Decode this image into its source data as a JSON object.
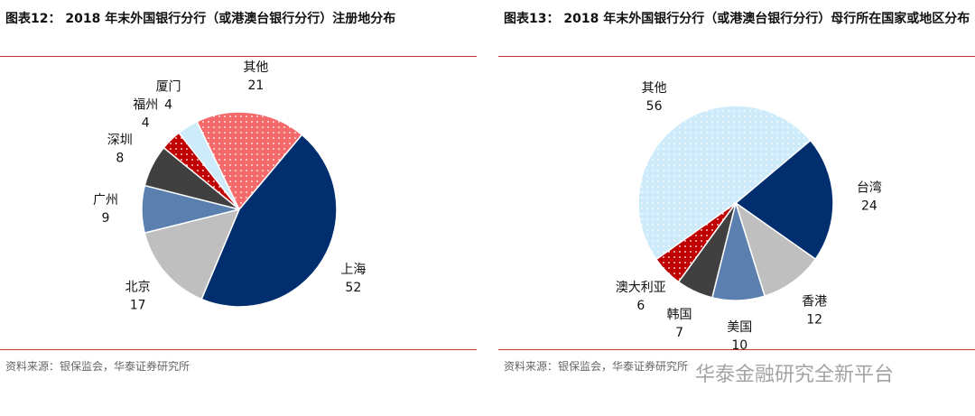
{
  "chart_data": [
    {
      "type": "pie",
      "title": "图表12：  2018 年末外国银行分行（或港澳台银行分行）注册地分布",
      "categories": [
        "上海",
        "北京",
        "广州",
        "深圳",
        "福州",
        "厦门",
        "其他"
      ],
      "values": [
        52,
        17,
        9,
        8,
        4,
        4,
        21
      ],
      "colors": [
        "#002e6e",
        "#bfbfbf",
        "#5b7fae",
        "#404040",
        "#c00000",
        "#cdebfa",
        "#f46a6a"
      ],
      "dotted": [
        false,
        false,
        false,
        false,
        true,
        false,
        true
      ]
    },
    {
      "type": "pie",
      "title": "图表13：  2018  年末外国银行分行（或港澳台银行分行）母行所在国家或地区分布",
      "categories": [
        "台湾",
        "香港",
        "美国",
        "韩国",
        "澳大利亚",
        "其他"
      ],
      "values": [
        24,
        12,
        10,
        7,
        6,
        56
      ],
      "colors": [
        "#002e6e",
        "#bfbfbf",
        "#5b7fae",
        "#404040",
        "#c00000",
        "#cdebfa"
      ],
      "dotted": [
        false,
        false,
        false,
        false,
        true,
        true
      ]
    }
  ],
  "sources": [
    "资料来源：银保监会，华泰证券研究所",
    "资料来源：银保监会，华泰证券研究所"
  ],
  "watermark": "华泰金融研究全新平台"
}
